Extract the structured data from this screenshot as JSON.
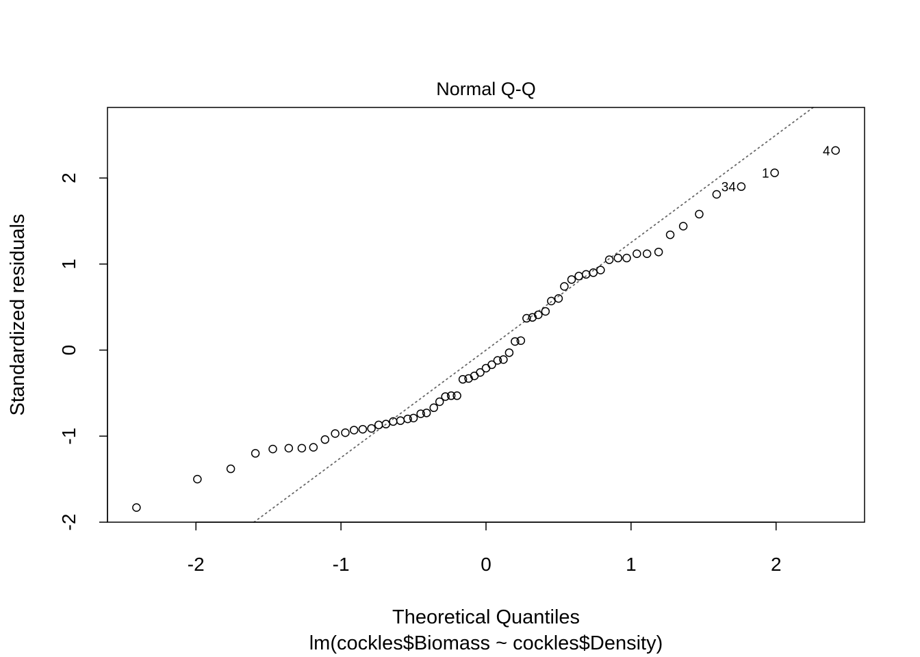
{
  "chart_data": {
    "type": "scatter",
    "title": "Normal Q-Q",
    "xlabel": "Theoretical Quantiles",
    "xlabel_sub": "lm(cockles$Biomass ~ cockles$Density)",
    "ylabel": "Standardized residuals",
    "xlim": [
      -2.61,
      2.61
    ],
    "ylim": [
      -2.0,
      2.82
    ],
    "x_ticks": [
      -2,
      -1,
      0,
      1,
      2
    ],
    "x_tick_labels": [
      "-2",
      "-1",
      "0",
      "1",
      "2"
    ],
    "y_ticks": [
      -2,
      -1,
      0,
      1,
      2
    ],
    "y_tick_labels": [
      "-2",
      "-1",
      "0",
      "1",
      "2"
    ],
    "grid": false,
    "marker": "open-circle",
    "reference_line": {
      "slope": 1.25,
      "intercept": 0.0,
      "style": "dotted",
      "color": "#666666"
    },
    "points": [
      [
        -2.41,
        -1.83
      ],
      [
        -1.99,
        -1.5
      ],
      [
        -1.76,
        -1.38
      ],
      [
        -1.59,
        -1.2
      ],
      [
        -1.47,
        -1.15
      ],
      [
        -1.36,
        -1.14
      ],
      [
        -1.27,
        -1.14
      ],
      [
        -1.19,
        -1.13
      ],
      [
        -1.11,
        -1.04
      ],
      [
        -1.04,
        -0.97
      ],
      [
        -0.97,
        -0.96
      ],
      [
        -0.91,
        -0.93
      ],
      [
        -0.85,
        -0.92
      ],
      [
        -0.79,
        -0.91
      ],
      [
        -0.74,
        -0.87
      ],
      [
        -0.69,
        -0.86
      ],
      [
        -0.64,
        -0.83
      ],
      [
        -0.59,
        -0.82
      ],
      [
        -0.54,
        -0.8
      ],
      [
        -0.5,
        -0.79
      ],
      [
        -0.45,
        -0.74
      ],
      [
        -0.41,
        -0.73
      ],
      [
        -0.36,
        -0.67
      ],
      [
        -0.32,
        -0.6
      ],
      [
        -0.28,
        -0.54
      ],
      [
        -0.24,
        -0.53
      ],
      [
        -0.2,
        -0.53
      ],
      [
        -0.16,
        -0.34
      ],
      [
        -0.12,
        -0.33
      ],
      [
        -0.08,
        -0.3
      ],
      [
        -0.04,
        -0.26
      ],
      [
        0.0,
        -0.21
      ],
      [
        0.04,
        -0.17
      ],
      [
        0.08,
        -0.12
      ],
      [
        0.12,
        -0.11
      ],
      [
        0.16,
        -0.03
      ],
      [
        0.2,
        0.1
      ],
      [
        0.24,
        0.11
      ],
      [
        0.28,
        0.37
      ],
      [
        0.32,
        0.38
      ],
      [
        0.36,
        0.41
      ],
      [
        0.41,
        0.45
      ],
      [
        0.45,
        0.57
      ],
      [
        0.5,
        0.6
      ],
      [
        0.54,
        0.74
      ],
      [
        0.59,
        0.82
      ],
      [
        0.64,
        0.86
      ],
      [
        0.69,
        0.88
      ],
      [
        0.74,
        0.9
      ],
      [
        0.79,
        0.93
      ],
      [
        0.85,
        1.05
      ],
      [
        0.91,
        1.07
      ],
      [
        0.97,
        1.07
      ],
      [
        1.04,
        1.12
      ],
      [
        1.11,
        1.12
      ],
      [
        1.19,
        1.14
      ],
      [
        1.27,
        1.34
      ],
      [
        1.36,
        1.44
      ],
      [
        1.47,
        1.58
      ],
      [
        1.59,
        1.81
      ],
      [
        1.76,
        1.9
      ],
      [
        1.99,
        2.06
      ],
      [
        2.41,
        2.32
      ]
    ],
    "point_labels": [
      {
        "text": "4",
        "x": 2.41,
        "y": 2.32
      },
      {
        "text": "1",
        "x": 1.99,
        "y": 2.06
      },
      {
        "text": "34",
        "x": 1.76,
        "y": 1.9
      }
    ]
  }
}
